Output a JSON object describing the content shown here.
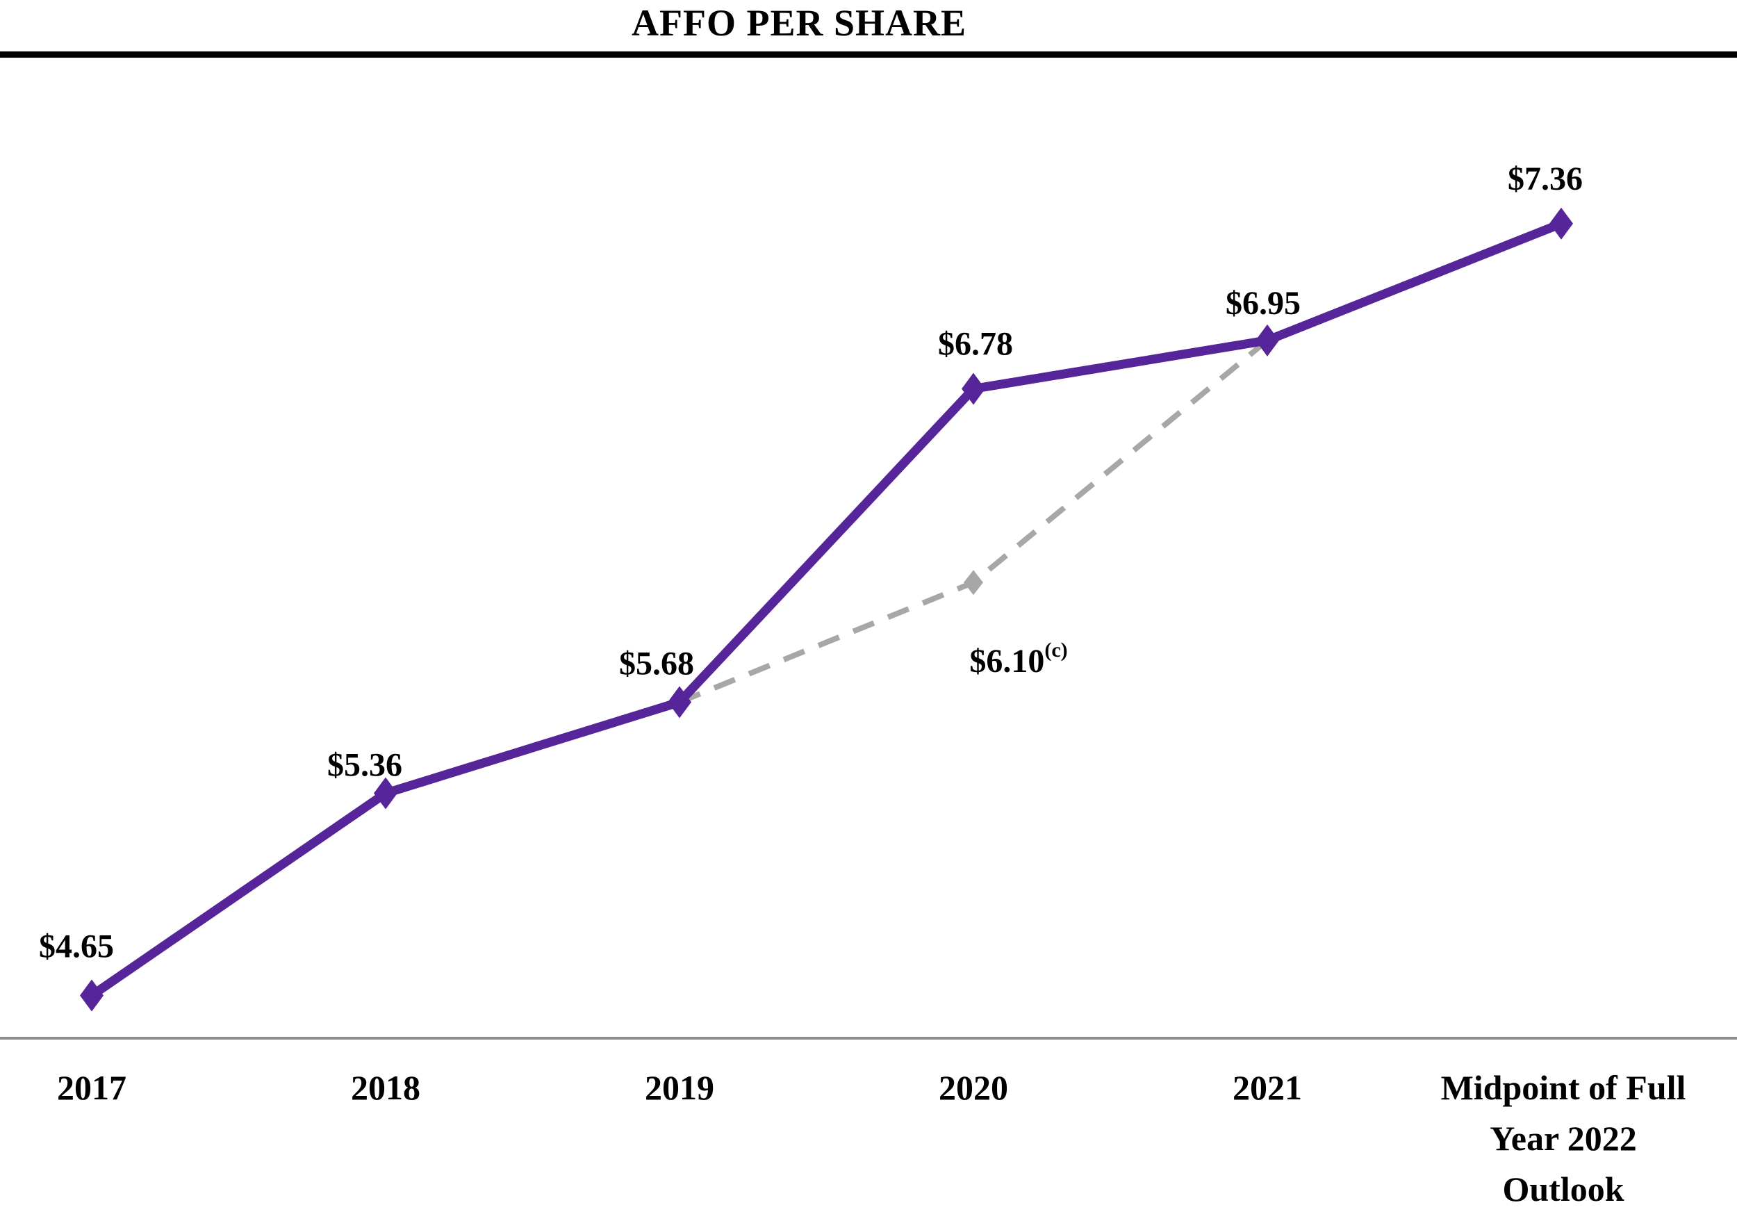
{
  "page": {
    "title": "AFFO PER SHARE"
  },
  "chart_data": {
    "type": "line",
    "title": "AFFO PER SHARE",
    "categories": [
      "2017",
      "2018",
      "2019",
      "2020",
      "2021",
      "Midpoint of Full\nYear 2022\nOutlook"
    ],
    "series": [
      {
        "id": "affo-per-share-solid",
        "style": "solid",
        "color": "#56259A",
        "marker": "diamond",
        "x_indices": [
          0,
          1,
          2,
          3,
          4,
          5
        ],
        "values": [
          4.65,
          5.36,
          5.68,
          6.78,
          6.95,
          7.36
        ],
        "point_labels": [
          "$4.65",
          "$5.36",
          "$5.68",
          "$6.78",
          "$6.95",
          "$7.36"
        ]
      },
      {
        "id": "affo-per-share-dashed",
        "style": "dashed",
        "color": "#A7A7A7",
        "marker": "diamond",
        "x_indices": [
          2,
          3,
          4
        ],
        "values": [
          5.68,
          6.1,
          6.95
        ],
        "point_labels": [
          null,
          "$6.10",
          null
        ],
        "point_label_superscripts": [
          null,
          "(c)",
          null
        ]
      }
    ],
    "ylim": [
      4.5,
      7.66
    ],
    "xlabel": "",
    "ylabel": "",
    "legend": "none",
    "grid": false,
    "axis_line_color": "#8C8C8C",
    "divider_color": "#000000",
    "text_color": "#000000"
  }
}
